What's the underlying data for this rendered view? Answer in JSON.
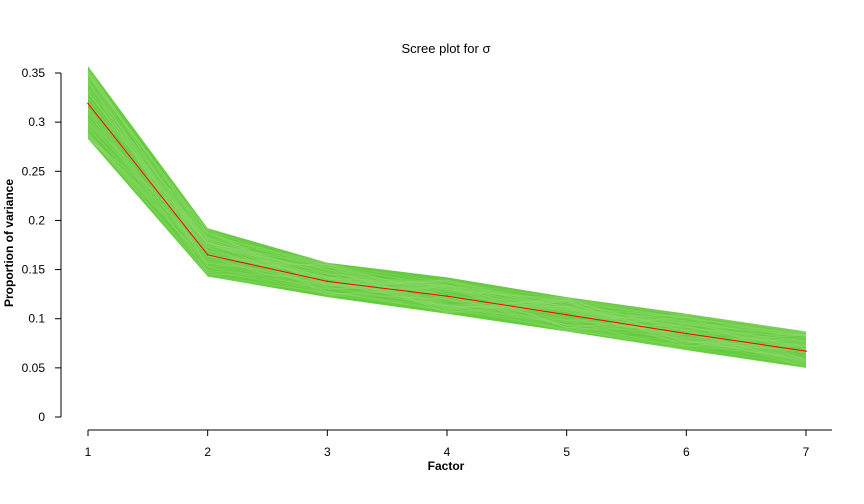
{
  "chart_data": {
    "type": "line",
    "title": "Scree plot for σ",
    "xlabel": "Factor",
    "ylabel": "Proportion of variance",
    "x": [
      1,
      2,
      3,
      4,
      5,
      6,
      7
    ],
    "x_tick_labels": [
      "1",
      "2",
      "3",
      "4",
      "5",
      "6",
      "7"
    ],
    "ylim": [
      0,
      0.35
    ],
    "y_ticks": [
      0,
      0.05,
      0.1,
      0.15,
      0.2,
      0.25,
      0.3,
      0.35
    ],
    "y_tick_labels": [
      "0",
      "0.05",
      "0.1",
      "0.15",
      "0.2",
      "0.25",
      "0.3",
      "0.35"
    ],
    "series": [
      {
        "role": "mean",
        "color": "#ff0000",
        "values": [
          0.319,
          0.165,
          0.138,
          0.123,
          0.104,
          0.085,
          0.067
        ]
      }
    ],
    "band": {
      "role": "posterior draws",
      "color": "#5ec935",
      "lower": [
        0.283,
        0.143,
        0.122,
        0.105,
        0.087,
        0.068,
        0.05
      ],
      "upper": [
        0.357,
        0.192,
        0.157,
        0.142,
        0.122,
        0.105,
        0.087
      ]
    },
    "grid": false,
    "legend": "none"
  }
}
